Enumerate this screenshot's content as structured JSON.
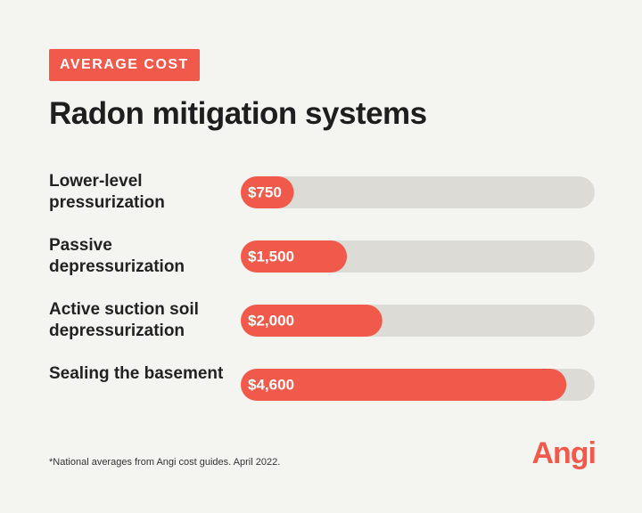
{
  "chart_data": {
    "type": "bar",
    "orientation": "horizontal",
    "badge": "AVERAGE COST",
    "title": "Radon mitigation systems",
    "categories": [
      "Lower-level pressurization",
      "Passive depressurization",
      "Active suction soil depressurization",
      "Sealing the basement"
    ],
    "values": [
      750,
      1500,
      2000,
      4600
    ],
    "value_labels": [
      "$750",
      "$1,500",
      "$2,000",
      "$4,600"
    ],
    "xlim": [
      0,
      5000
    ],
    "color": "#f15a4a",
    "track_color": "#dddbd6",
    "footnote": "*National averages from Angi cost guides. April 2022.",
    "logo": "Angi"
  }
}
